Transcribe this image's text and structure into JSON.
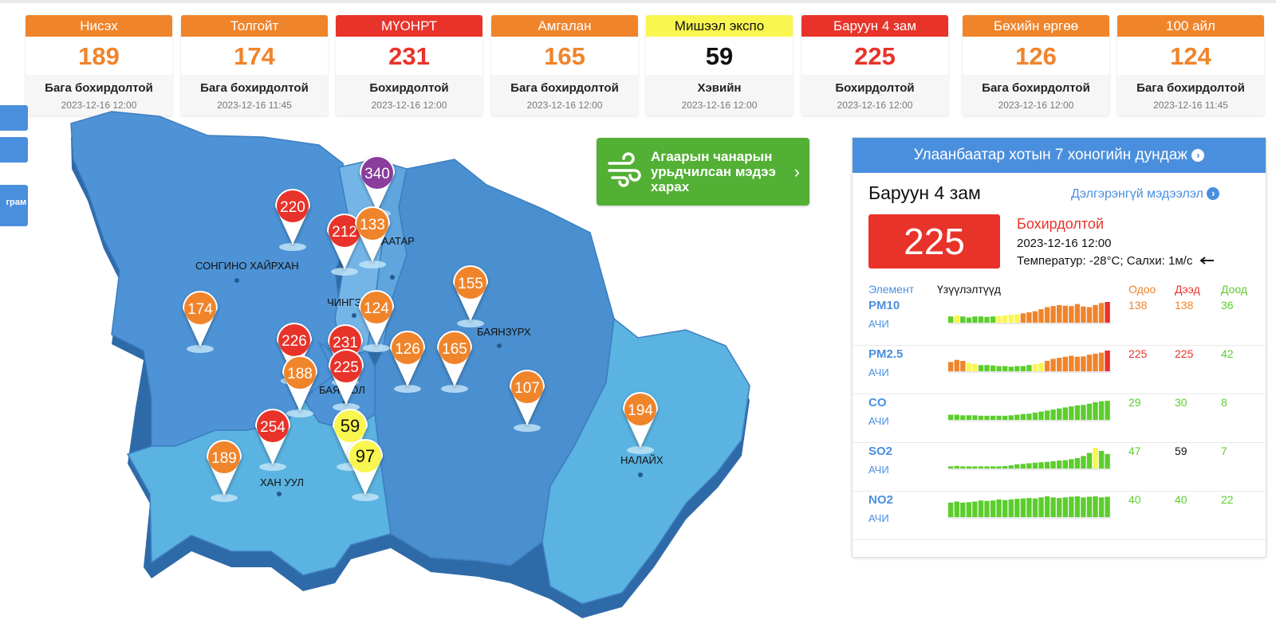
{
  "stations": [
    {
      "name": "Нисэх",
      "value": "189",
      "status": "Бага бохирдолтой",
      "time": "2023-12-16 12:00",
      "header_color": "#f0842b",
      "value_color": "#f0842b",
      "header_text_color": "#ffffff"
    },
    {
      "name": "Толгойт",
      "value": "174",
      "status": "Бага бохирдолтой",
      "time": "2023-12-16 11:45",
      "header_color": "#f0842b",
      "value_color": "#f0842b",
      "header_text_color": "#ffffff"
    },
    {
      "name": "МҮОНРТ",
      "value": "231",
      "status": "Бохирдолтой",
      "time": "2023-12-16 12:00",
      "header_color": "#e8332a",
      "value_color": "#e8332a",
      "header_text_color": "#ffffff"
    },
    {
      "name": "Амгалан",
      "value": "165",
      "status": "Бага бохирдолтой",
      "time": "2023-12-16 12:00",
      "header_color": "#f0842b",
      "value_color": "#f0842b",
      "header_text_color": "#ffffff"
    },
    {
      "name": "Мишээл экспо",
      "value": "59",
      "status": "Хэвийн",
      "time": "2023-12-16 12:00",
      "header_color": "#f8f64f",
      "value_color": "#111111",
      "header_text_color": "#111111"
    },
    {
      "name": "Баруун 4 зам",
      "value": "225",
      "status": "Бохирдолтой",
      "time": "2023-12-16 12:00",
      "header_color": "#e8332a",
      "value_color": "#e8332a",
      "header_text_color": "#ffffff"
    },
    {
      "name": "Бөхийн өргөө",
      "value": "126",
      "status": "Бага бохирдолтой",
      "time": "2023-12-16 12:00",
      "header_color": "#f0842b",
      "value_color": "#f0842b",
      "header_text_color": "#ffffff"
    },
    {
      "name": "100 айл",
      "value": "124",
      "status": "Бага бохирдолтой",
      "time": "2023-12-16 11:45",
      "header_color": "#f0842b",
      "value_color": "#f0842b",
      "header_text_color": "#ffffff"
    }
  ],
  "side_tab_label": "грам",
  "districts": [
    "СОНГИНО ХАЙРХАН",
    "ЧИНГЭ",
    "АААТАР",
    "БАЯНЗҮРХ",
    "БАЯН ОЛ",
    "ХАН УУЛ",
    "НАЛАЙХ"
  ],
  "markers": [
    {
      "value": "340",
      "color": "#8a3d9c",
      "text_color": "#ffffff"
    },
    {
      "value": "220",
      "color": "#e8332a",
      "text_color": "#ffffff"
    },
    {
      "value": "212",
      "color": "#e8332a",
      "text_color": "#ffffff"
    },
    {
      "value": "133",
      "color": "#f0842b",
      "text_color": "#ffffff"
    },
    {
      "value": "155",
      "color": "#f0842b",
      "text_color": "#ffffff"
    },
    {
      "value": "174",
      "color": "#f0842b",
      "text_color": "#ffffff"
    },
    {
      "value": "124",
      "color": "#f0842b",
      "text_color": "#ffffff"
    },
    {
      "value": "226",
      "color": "#e8332a",
      "text_color": "#ffffff"
    },
    {
      "value": "231",
      "color": "#e8332a",
      "text_color": "#ffffff"
    },
    {
      "value": "126",
      "color": "#f0842b",
      "text_color": "#ffffff"
    },
    {
      "value": "165",
      "color": "#f0842b",
      "text_color": "#ffffff"
    },
    {
      "value": "188",
      "color": "#f0842b",
      "text_color": "#ffffff"
    },
    {
      "value": "225",
      "color": "#e8332a",
      "text_color": "#ffffff"
    },
    {
      "value": "107",
      "color": "#f0842b",
      "text_color": "#ffffff"
    },
    {
      "value": "194",
      "color": "#f0842b",
      "text_color": "#ffffff"
    },
    {
      "value": "254",
      "color": "#e8332a",
      "text_color": "#ffffff"
    },
    {
      "value": "59",
      "color": "#f8f64f",
      "text_color": "#111111"
    },
    {
      "value": "189",
      "color": "#f0842b",
      "text_color": "#ffffff"
    },
    {
      "value": "97",
      "color": "#f8f64f",
      "text_color": "#111111"
    }
  ],
  "forecast_button": {
    "label": "Агаарын чанарын урьдчилсан мэдээ харах"
  },
  "panel": {
    "title": "Улаанбаатар хотын 7 хоногийн дундаж",
    "station": "Баруун 4 зам",
    "detail_link": "Дэлгэрэнгүй мэдээлэл",
    "aqi": "225",
    "status": "Бохирдолтой",
    "time": "2023-12-16 12:00",
    "weather": "Температур: -28°C; Салхи: 1м/с",
    "wind_icon": "wind-direction-arrow-icon",
    "headers": {
      "element": "Элемент",
      "indicators": "Үзүүлэлтүүд",
      "current": "Одоо",
      "max": "Дээд",
      "min": "Доод"
    },
    "elements": [
      {
        "name": "PM10",
        "sub": "АЧИ",
        "current": "138",
        "max": "138",
        "min": "36",
        "current_color": "#f0842b",
        "max_color": "#f0842b",
        "min_color": "#5ccd2d",
        "levels": [
          0.3,
          0.35,
          0.3,
          0.25,
          0.3,
          0.3,
          0.28,
          0.3,
          0.32,
          0.35,
          0.38,
          0.4,
          0.45,
          0.5,
          0.55,
          0.65,
          0.75,
          0.8,
          0.85,
          0.82,
          0.8,
          0.9,
          0.78,
          0.75,
          0.85,
          0.95,
          1.0
        ]
      },
      {
        "name": "PM2.5",
        "sub": "АЧИ",
        "current": "225",
        "max": "225",
        "min": "42",
        "current_color": "#e8332a",
        "max_color": "#e8332a",
        "min_color": "#5ccd2d",
        "levels": [
          0.45,
          0.55,
          0.5,
          0.4,
          0.35,
          0.3,
          0.3,
          0.28,
          0.25,
          0.25,
          0.22,
          0.25,
          0.25,
          0.3,
          0.35,
          0.4,
          0.5,
          0.6,
          0.65,
          0.7,
          0.75,
          0.7,
          0.72,
          0.8,
          0.85,
          0.9,
          1.0
        ]
      },
      {
        "name": "CO",
        "sub": "АЧИ",
        "current": "29",
        "max": "30",
        "min": "8",
        "current_color": "#5ccd2d",
        "max_color": "#5ccd2d",
        "min_color": "#5ccd2d",
        "levels": [
          0.25,
          0.25,
          0.22,
          0.22,
          0.22,
          0.2,
          0.2,
          0.2,
          0.2,
          0.2,
          0.22,
          0.25,
          0.28,
          0.3,
          0.35,
          0.4,
          0.45,
          0.5,
          0.55,
          0.6,
          0.65,
          0.7,
          0.72,
          0.78,
          0.85,
          0.9,
          0.92
        ]
      },
      {
        "name": "SO2",
        "sub": "АЧИ",
        "current": "47",
        "max": "59",
        "min": "7",
        "current_color": "#5ccd2d",
        "max_color": "#111111",
        "min_color": "#5ccd2d",
        "levels": [
          0.1,
          0.12,
          0.1,
          0.1,
          0.1,
          0.1,
          0.1,
          0.1,
          0.1,
          0.12,
          0.15,
          0.2,
          0.22,
          0.25,
          0.28,
          0.3,
          0.32,
          0.35,
          0.38,
          0.4,
          0.45,
          0.5,
          0.6,
          0.75,
          1.0,
          0.85,
          0.7
        ]
      },
      {
        "name": "NO2",
        "sub": "АЧИ",
        "current": "40",
        "max": "40",
        "min": "22",
        "current_color": "#5ccd2d",
        "max_color": "#5ccd2d",
        "min_color": "#5ccd2d",
        "levels": [
          0.7,
          0.75,
          0.7,
          0.72,
          0.75,
          0.8,
          0.78,
          0.8,
          0.85,
          0.82,
          0.85,
          0.88,
          0.9,
          0.92,
          0.9,
          0.95,
          1.0,
          0.95,
          0.92,
          0.95,
          0.98,
          1.0,
          0.95,
          0.98,
          1.0,
          0.95,
          0.98
        ]
      }
    ]
  },
  "colors": {
    "accent": "#4a8fdd",
    "good": "#5ccd2d",
    "moderate": "#f8f64f",
    "unhealthy_sensitive": "#f0842b",
    "unhealthy": "#e8332a",
    "very_unhealthy": "#8a3d9c"
  }
}
